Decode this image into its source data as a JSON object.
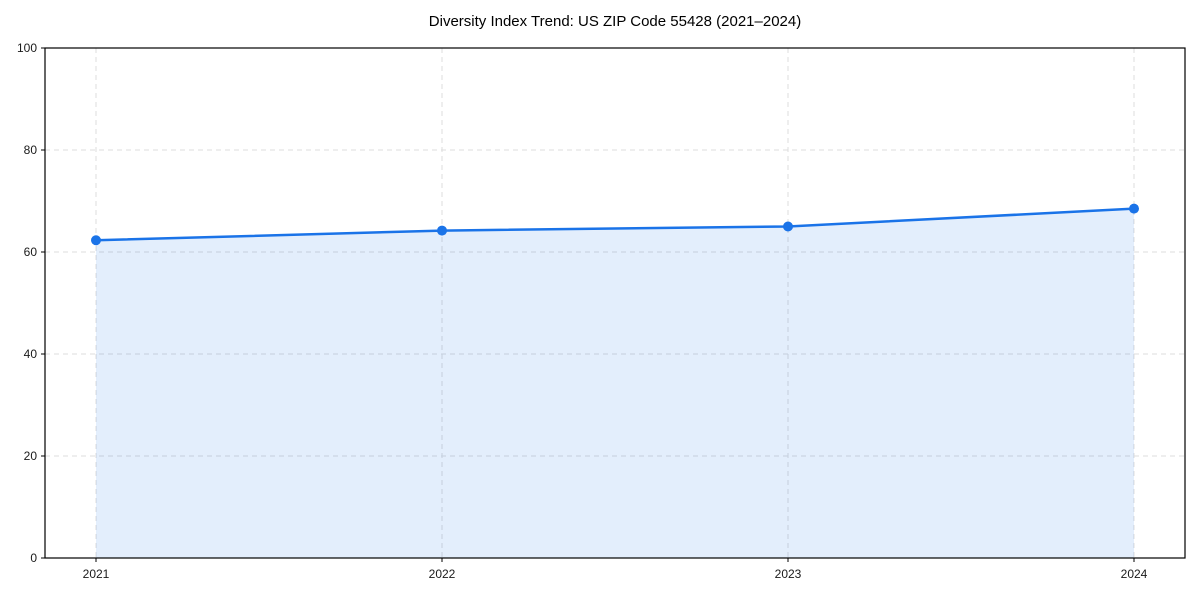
{
  "chart_data": {
    "type": "line",
    "title": "Diversity Index Trend: US ZIP Code 55428 (2021–2024)",
    "x": [
      "2021",
      "2022",
      "2023",
      "2024"
    ],
    "values": [
      62.3,
      64.2,
      65.0,
      68.5
    ],
    "xlabel": "",
    "ylabel": "",
    "ylim": [
      0,
      100
    ],
    "yticks": [
      0,
      20,
      40,
      60,
      80,
      100
    ],
    "grid": "dashed-both-axes",
    "legend": "none",
    "area_fill_to_zero": true,
    "marker": "circle",
    "colors": {
      "line": "#1a73e8",
      "marker": "#1a73e8",
      "area": "#1a73e8",
      "area_opacity": 0.12,
      "grid": "#dcdcdc",
      "axis": "#000000",
      "tick_label": "#1a1a1a",
      "title": "#000000",
      "background": "#ffffff"
    }
  }
}
